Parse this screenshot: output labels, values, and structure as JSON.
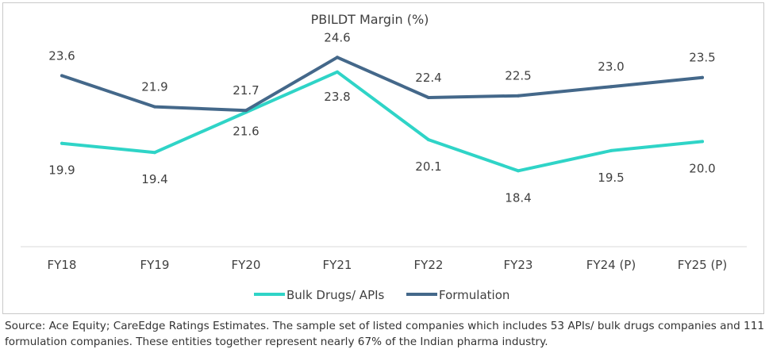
{
  "chart_data": {
    "type": "line",
    "title": "PBILDT Margin (%)",
    "categories": [
      "FY18",
      "FY19",
      "FY20",
      "FY21",
      "FY22",
      "FY23",
      "FY24 (P)",
      "FY25 (P)"
    ],
    "series": [
      {
        "name": "Bulk Drugs/ APIs",
        "values": [
          19.9,
          19.4,
          21.6,
          23.8,
          20.1,
          18.4,
          19.5,
          20.0
        ],
        "color": "#2fd4c7"
      },
      {
        "name": "Formulation",
        "values": [
          23.6,
          21.9,
          21.7,
          24.6,
          22.4,
          22.5,
          23.0,
          23.5
        ],
        "color": "#44688a"
      }
    ],
    "ylim": [
      14.25,
      26.0
    ],
    "grid": false,
    "legend_position": "bottom",
    "xlabel": "",
    "ylabel": ""
  },
  "source_note": "Source: Ace Equity; CareEdge Ratings Estimates. The sample set of listed companies which includes 53 APIs/ bulk drugs companies and 111 formulation companies. These entities together represent nearly 67% of the Indian pharma industry."
}
